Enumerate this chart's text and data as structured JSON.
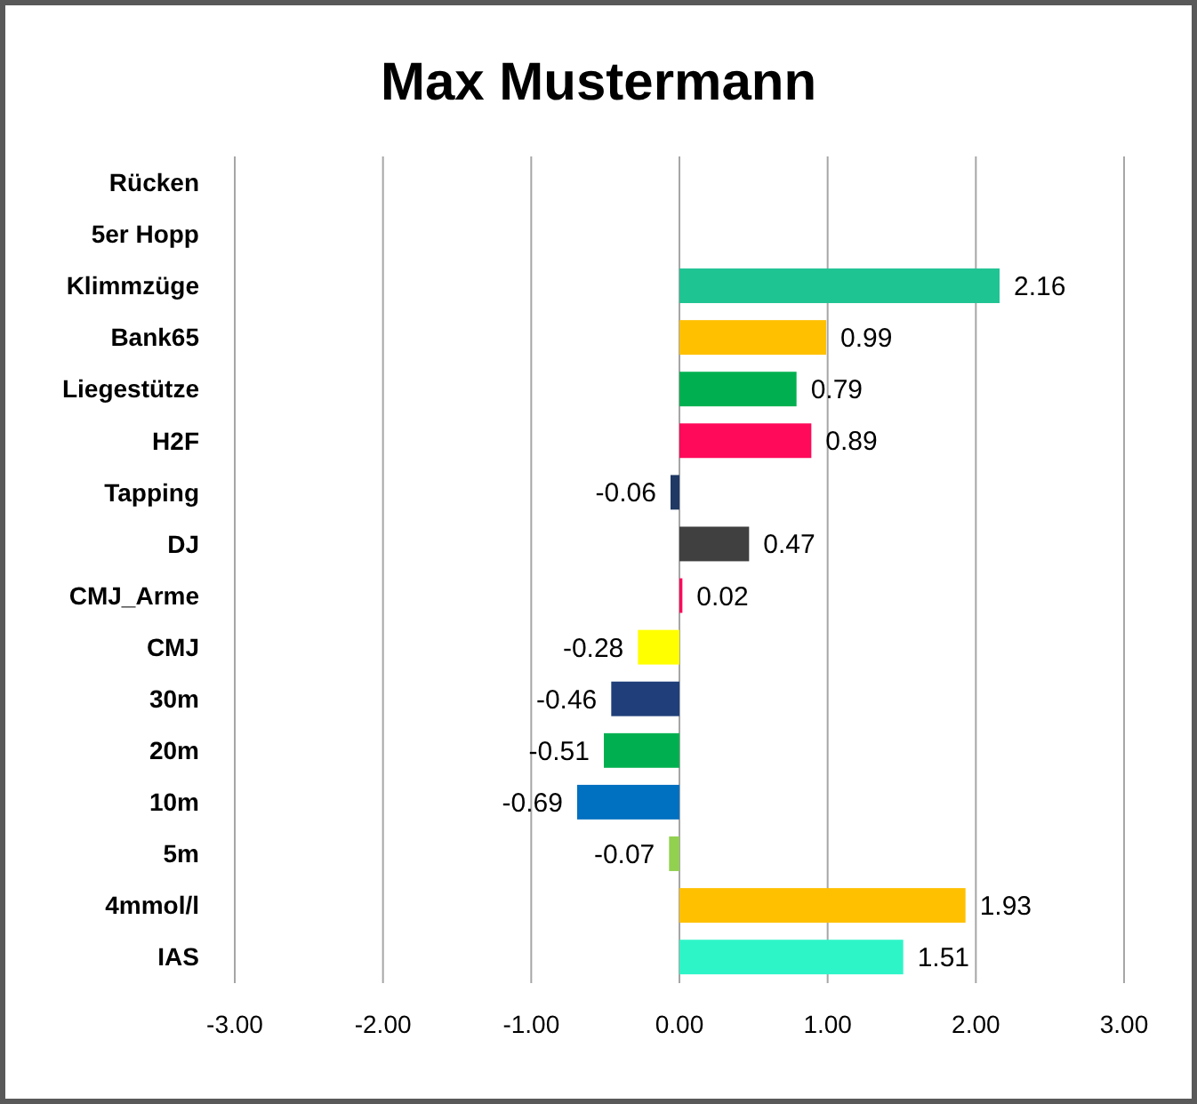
{
  "chart_data": {
    "type": "bar",
    "orientation": "horizontal",
    "title": "Max Mustermann",
    "categories": [
      "Rücken",
      "5er Hopp",
      "Klimmzüge",
      "Bank65",
      "Liegestütze",
      "H2F",
      "Tapping",
      "DJ",
      "CMJ_Arme",
      "CMJ",
      "30m",
      "20m",
      "10m",
      "5m",
      "4mmol/l",
      "IAS"
    ],
    "values": [
      null,
      null,
      2.16,
      0.99,
      0.79,
      0.89,
      -0.06,
      0.47,
      0.02,
      -0.28,
      -0.46,
      -0.51,
      -0.69,
      -0.07,
      1.93,
      1.51
    ],
    "colors": [
      null,
      null,
      "#1fc493",
      "#ffc000",
      "#00b050",
      "#ff0a5a",
      "#1f3864",
      "#404040",
      "#ff0a5a",
      "#ffff00",
      "#203f7a",
      "#00b050",
      "#0070c0",
      "#92d050",
      "#ffc000",
      "#2ef5c8"
    ],
    "value_labels": [
      null,
      null,
      "2.16",
      "0.99",
      "0.79",
      "0.89",
      "-0.06",
      "0.47",
      "0.02",
      "-0.28",
      "-0.46",
      "-0.51",
      "-0.69",
      "-0.07",
      "1.93",
      "1.51"
    ],
    "xlim": [
      -3,
      3
    ],
    "xticks": [
      {
        "value": -3,
        "label": "-3.00"
      },
      {
        "value": -2,
        "label": "-2.00"
      },
      {
        "value": -1,
        "label": "-1.00"
      },
      {
        "value": 0,
        "label": "0.00"
      },
      {
        "value": 1,
        "label": "1.00"
      },
      {
        "value": 2,
        "label": "2.00"
      },
      {
        "value": 3,
        "label": "3.00"
      }
    ],
    "grid": "x"
  }
}
